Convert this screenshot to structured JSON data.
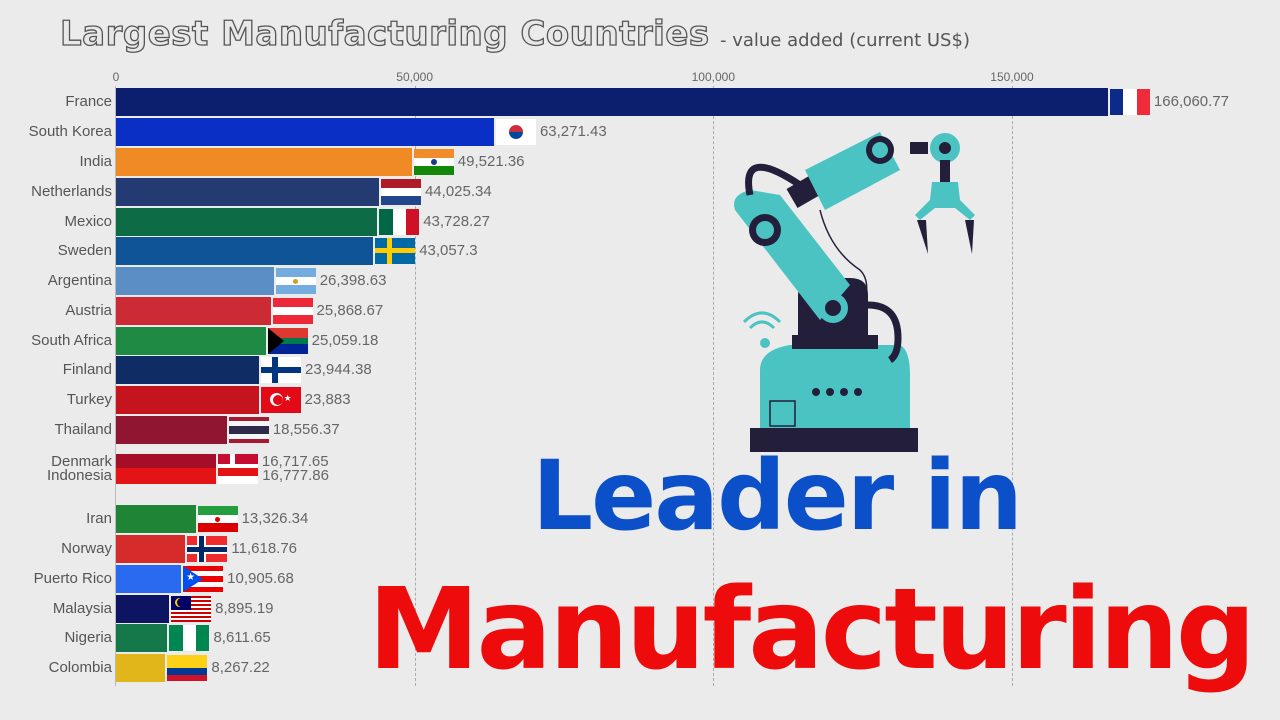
{
  "header": {
    "title": "Largest Manufacturing Countries",
    "subtitle": "-  value added (current US$)"
  },
  "axis": {
    "ticks": [
      {
        "label": "0",
        "value": 0
      },
      {
        "label": "50,000",
        "value": 50000
      },
      {
        "label": "100,000",
        "value": 100000
      },
      {
        "label": "150,000",
        "value": 150000
      }
    ]
  },
  "overlay": {
    "line1": "Leader in",
    "line2": "Manufacturing",
    "line1_color": "#0b4fc9",
    "line2_color": "#ee0b0b",
    "image": "industrial-robot-arm-illustration"
  },
  "chart_data": {
    "type": "bar",
    "orientation": "horizontal",
    "title": "Largest Manufacturing Countries",
    "subtitle": "value added (current US$)",
    "xlabel": "",
    "ylabel": "",
    "xlim": [
      0,
      170000
    ],
    "grid": true,
    "categories": [
      "France",
      "South Korea",
      "India",
      "Netherlands",
      "Mexico",
      "Sweden",
      "Argentina",
      "Austria",
      "South Africa",
      "Finland",
      "Turkey",
      "Thailand",
      "Denmark",
      "Indonesia",
      "Iran",
      "Norway",
      "Puerto Rico",
      "Malaysia",
      "Nigeria",
      "Colombia"
    ],
    "values": [
      166060.77,
      63271.43,
      49521.36,
      44025.34,
      43728.27,
      43057.3,
      26398.63,
      25868.67,
      25059.18,
      23944.38,
      23883,
      18556.37,
      16717.65,
      16777.86,
      13326.34,
      11618.76,
      10905.68,
      8895.19,
      8611.65,
      8267.22
    ],
    "value_labels": [
      "166,060.77",
      "63,271.43",
      "49,521.36",
      "44,025.34",
      "43,728.27",
      "43,057.3",
      "26,398.63",
      "25,868.67",
      "25,059.18",
      "23,944.38",
      "23,883",
      "18,556.37",
      "16,717.65",
      "16,777.86",
      "13,326.34",
      "11,618.76",
      "10,905.68",
      "8,895.19",
      "8,611.65",
      "8,267.22"
    ],
    "colors": [
      "#0c1f6e",
      "#0a2fc4",
      "#f08a24",
      "#233a72",
      "#0d6b45",
      "#0e5496",
      "#5b8ec4",
      "#cc2a35",
      "#1f8a44",
      "#0f2d64",
      "#c5141d",
      "#8f1530",
      "#a60d28",
      "#e31316",
      "#1f8436",
      "#d62b2b",
      "#2a6af0",
      "#0d1462",
      "#14784a",
      "#e0b61a"
    ]
  }
}
